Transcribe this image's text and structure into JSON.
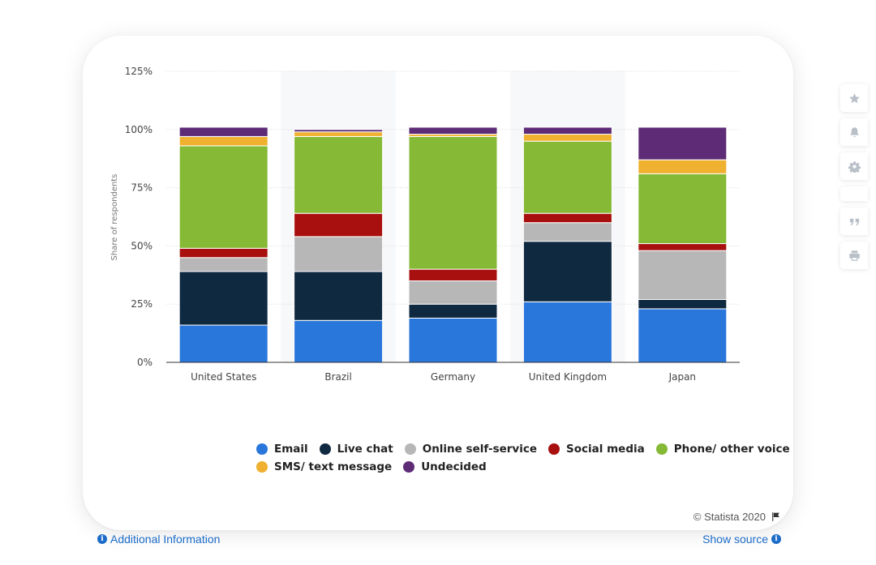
{
  "chart_data": {
    "type": "bar",
    "stacked": true,
    "categories": [
      "United States",
      "Brazil",
      "Germany",
      "United Kingdom",
      "Japan"
    ],
    "series": [
      {
        "name": "Email",
        "color": "#2a77dc",
        "values": [
          16,
          18,
          19,
          26,
          23
        ]
      },
      {
        "name": "Live chat",
        "color": "#0f2940",
        "values": [
          23,
          21,
          6,
          26,
          4
        ]
      },
      {
        "name": "Online self-service",
        "color": "#b7b7b7",
        "values": [
          6,
          15,
          10,
          8,
          21
        ]
      },
      {
        "name": "Social media",
        "color": "#a8100f",
        "values": [
          4,
          10,
          5,
          4,
          3
        ]
      },
      {
        "name": "Phone/ other voice",
        "color": "#86b935",
        "values": [
          44,
          33,
          57,
          31,
          30
        ]
      },
      {
        "name": "SMS/ text message",
        "color": "#efb12f",
        "values": [
          4,
          2,
          1,
          3,
          6
        ]
      },
      {
        "name": "Undecided",
        "color": "#5e2b76",
        "values": [
          4,
          1,
          3,
          3,
          14
        ]
      }
    ],
    "ylim": [
      0,
      125
    ],
    "yticks": [
      0,
      25,
      50,
      75,
      100,
      125
    ],
    "yticklabels": [
      "0%",
      "25%",
      "50%",
      "75%",
      "100%",
      "125%"
    ],
    "ylabel": "Share of respondents",
    "xlabel": "",
    "title": "",
    "legend_position": "bottom"
  },
  "footer": {
    "copyright": "© Statista 2020",
    "additional_info": "Additional Information",
    "show_source": "Show source"
  },
  "toolbar": {
    "items": [
      "star-icon",
      "bell-icon",
      "gear-icon",
      "blank",
      "quote-icon",
      "print-icon"
    ]
  }
}
